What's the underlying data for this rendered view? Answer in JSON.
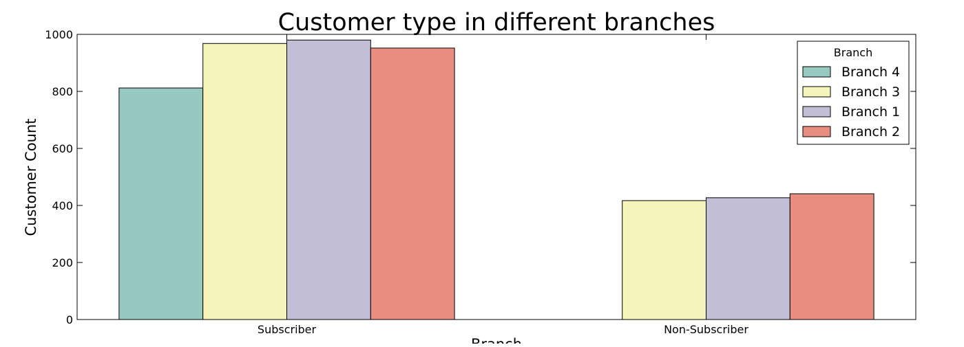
{
  "chart_data": {
    "type": "bar",
    "title": "Customer type in different branches",
    "xlabel": "Branch",
    "ylabel": "Customer Count",
    "categories": [
      "Subscriber",
      "Non-Subscriber"
    ],
    "ylim": [
      0,
      1000
    ],
    "yticks": [
      0,
      200,
      400,
      600,
      800,
      1000
    ],
    "grid": false,
    "legend": {
      "title": "Branch",
      "placement": "top-right"
    },
    "series": [
      {
        "name": "Branch 4",
        "color": "#98c9c1",
        "values": [
          812,
          0
        ]
      },
      {
        "name": "Branch 3",
        "color": "#f5f5bb",
        "values": [
          968,
          417
        ]
      },
      {
        "name": "Branch 1",
        "color": "#c2bed6",
        "values": [
          980,
          427
        ]
      },
      {
        "name": "Branch 2",
        "color": "#e98d81",
        "values": [
          952,
          441
        ]
      }
    ]
  }
}
